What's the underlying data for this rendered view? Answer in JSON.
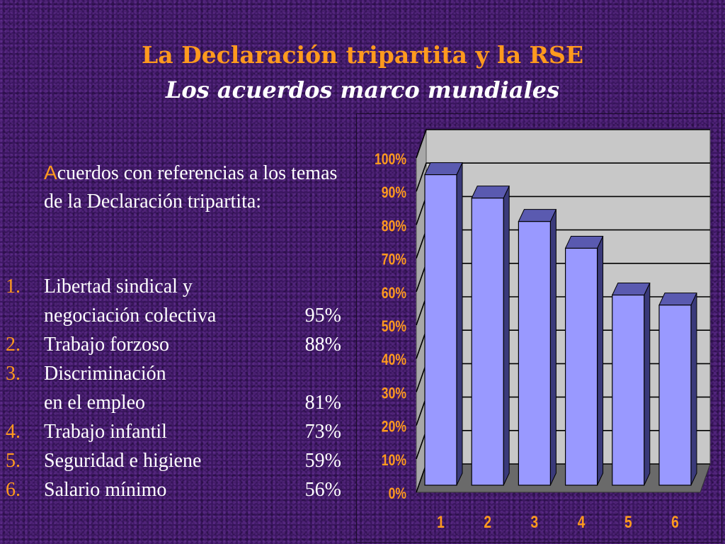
{
  "slide": {
    "title": "La Declaración tripartita y la RSE",
    "subtitle": "Los acuerdos marco mundiales",
    "intro_first_letter": "A",
    "intro_rest": "cuerdos con referencias a los temas de la Declaración tripartita:",
    "items": [
      {
        "num": "1.",
        "lines": [
          "Libertad sindical y",
          "negociación colectiva"
        ],
        "pct": "95%"
      },
      {
        "num": "2.",
        "lines": [
          "Trabajo forzoso"
        ],
        "pct": "88%"
      },
      {
        "num": "3.",
        "lines": [
          "Discriminación",
          "en el empleo"
        ],
        "pct": "81%"
      },
      {
        "num": "4.",
        "lines": [
          "Trabajo infantil"
        ],
        "pct": "73%"
      },
      {
        "num": "5.",
        "lines": [
          "Seguridad e higiene"
        ],
        "pct": "59%"
      },
      {
        "num": "6.",
        "lines": [
          "Salario mínimo"
        ],
        "pct": "56%"
      }
    ]
  },
  "chart_data": {
    "type": "bar",
    "categories": [
      "1",
      "2",
      "3",
      "4",
      "5",
      "6"
    ],
    "values": [
      95,
      88,
      81,
      73,
      59,
      56
    ],
    "ylim": [
      0,
      100
    ],
    "yticks": [
      "0%",
      "10%",
      "20%",
      "30%",
      "40%",
      "50%",
      "60%",
      "70%",
      "80%",
      "90%",
      "100%"
    ],
    "grid": true,
    "bar_color": "#9999ff",
    "wall_color": "#c8c8c8",
    "floor_color": "#6a6a6a",
    "tick_color": "#ff9a1e"
  }
}
